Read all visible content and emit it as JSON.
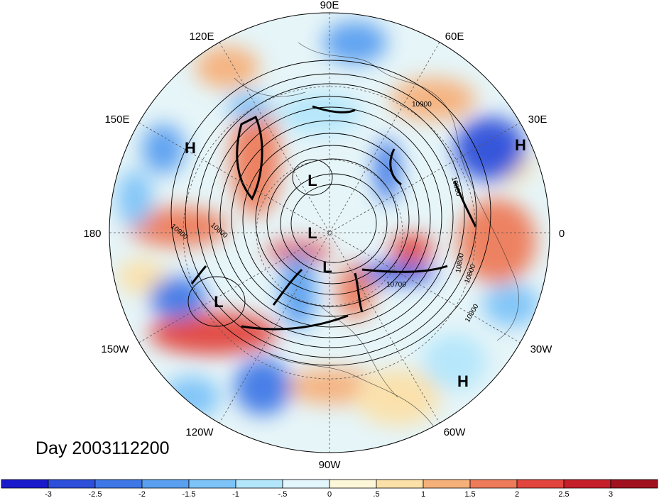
{
  "title": "Day 2003112200",
  "longitude_labels": [
    "90E",
    "120E",
    "60E",
    "150E",
    "30E",
    "180",
    "0",
    "150W",
    "30W",
    "120W",
    "60W",
    "90W"
  ],
  "pressure_centers": [
    "H",
    "H",
    "L",
    "L",
    "L",
    "L",
    "H"
  ],
  "contour_labels": [
    "10900",
    "10800",
    "10900",
    "10800",
    "10800",
    "10700",
    "10800",
    "10900"
  ],
  "colorbar": {
    "ticks": [
      "-3",
      "-2.5",
      "-2",
      "-1.5",
      "-1",
      "-.5",
      "0",
      ".5",
      "1",
      "1.5",
      "2",
      "2.5",
      "3"
    ],
    "colors": [
      "#1a1acd",
      "#2e4fd9",
      "#3f78e6",
      "#5a9ff0",
      "#7dc3f8",
      "#b4e6fb",
      "#e3f6fc",
      "#fdf7d9",
      "#fbe0a8",
      "#f6b07a",
      "#ee7b5a",
      "#e2453d",
      "#c51f2a",
      "#a0121f"
    ]
  }
}
